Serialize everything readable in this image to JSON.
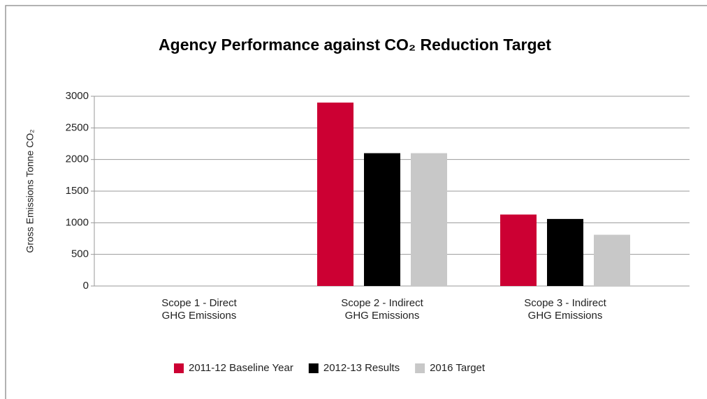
{
  "chart_data": {
    "type": "bar",
    "title": "Agency Performance against CO₂ Reduction Target",
    "y_label": "Gross Emissions Tonne CO₂",
    "categories": [
      "Scope 1 - Direct\nGHG Emissions",
      "Scope 2 - Indirect\nGHG Emissions",
      "Scope 3 - Indirect\nGHG Emissions"
    ],
    "series": [
      {
        "name": "2011-12 Baseline Year",
        "color": "#cc0033",
        "values": [
          0,
          2900,
          1130
        ]
      },
      {
        "name": "2012-13 Results",
        "color": "#000000",
        "values": [
          0,
          2100,
          1060
        ]
      },
      {
        "name": "2016 Target",
        "color": "#c8c8c8",
        "values": [
          0,
          2100,
          810
        ]
      }
    ],
    "ylim": [
      0,
      3000
    ],
    "yticks": [
      0,
      500,
      1000,
      1500,
      2000,
      2500,
      3000
    ],
    "grid": true,
    "legend": "bottom"
  }
}
